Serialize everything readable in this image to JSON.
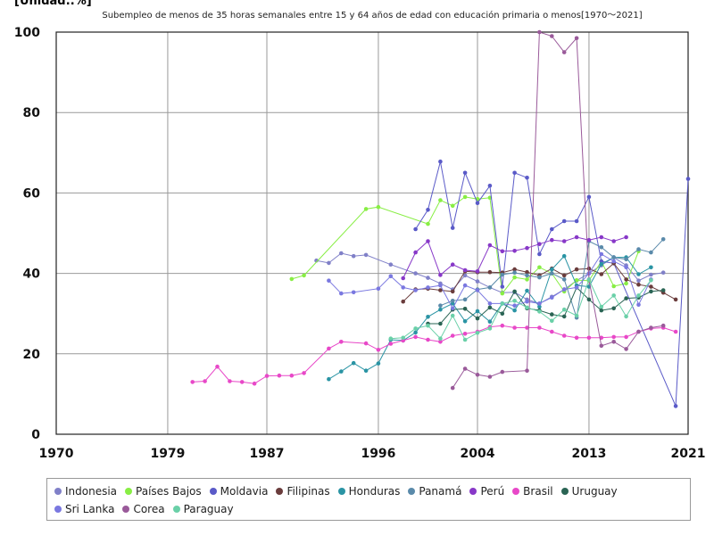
{
  "unit_label": "[Unidad:.%]",
  "chart_data": {
    "type": "line",
    "title": "Subempleo de menos de 35 horas semanales entre 15 y 64 años de edad con educación primaria o menos[1970～2021]",
    "xlim": [
      1970,
      2021
    ],
    "ylim": [
      0,
      100
    ],
    "x_ticks": [
      1970,
      1979,
      1987,
      1996,
      2004,
      2013,
      2021
    ],
    "y_ticks": [
      0,
      20,
      40,
      60,
      80,
      100
    ],
    "grid": true,
    "legend_position": "bottom",
    "series": [
      {
        "name": "Indonesia",
        "color": "#8080c8",
        "points": [
          [
            1991,
            43.2
          ],
          [
            1992,
            42.6
          ],
          [
            1993,
            45
          ],
          [
            1994,
            44.3
          ],
          [
            1995,
            44.6
          ],
          [
            1997,
            42.2
          ],
          [
            1999,
            40
          ],
          [
            2000,
            38.9
          ],
          [
            2001,
            37.5
          ],
          [
            2002,
            36
          ],
          [
            2003,
            39.5
          ],
          [
            2004,
            38
          ],
          [
            2005,
            36.5
          ],
          [
            2006,
            35.2
          ],
          [
            2007,
            35.3
          ],
          [
            2008,
            33.5
          ],
          [
            2009,
            32.5
          ],
          [
            2010,
            34.2
          ],
          [
            2011,
            36
          ],
          [
            2012,
            38.2
          ],
          [
            2013,
            40
          ],
          [
            2014,
            42
          ],
          [
            2015,
            44
          ],
          [
            2016,
            42
          ],
          [
            2017,
            38.2
          ],
          [
            2018,
            39.7
          ],
          [
            2019,
            40.2
          ]
        ]
      },
      {
        "name": "Países Bajos",
        "color": "#88ee44",
        "points": [
          [
            1989,
            38.6
          ],
          [
            1990,
            39.5
          ],
          [
            1995,
            56
          ],
          [
            1996,
            56.5
          ],
          [
            2000,
            52.3
          ],
          [
            2001,
            58.2
          ],
          [
            2002,
            56.8
          ],
          [
            2003,
            59
          ],
          [
            2004,
            58.5
          ],
          [
            2005,
            58.8
          ],
          [
            2006,
            35
          ],
          [
            2007,
            39
          ],
          [
            2008,
            38.5
          ],
          [
            2009,
            41.5
          ],
          [
            2010,
            40
          ],
          [
            2011,
            35.5
          ],
          [
            2012,
            38.3
          ],
          [
            2013,
            38.2
          ],
          [
            2014,
            43
          ],
          [
            2015,
            36.8
          ],
          [
            2016,
            37.5
          ],
          [
            2017,
            45.5
          ]
        ]
      },
      {
        "name": "Moldavia",
        "color": "#5a5ac8",
        "points": [
          [
            1999,
            51
          ],
          [
            2000,
            55.8
          ],
          [
            2001,
            67.8
          ],
          [
            2002,
            51.3
          ],
          [
            2003,
            65
          ],
          [
            2004,
            57.5
          ],
          [
            2005,
            61.8
          ],
          [
            2006,
            36.7
          ],
          [
            2007,
            65
          ],
          [
            2008,
            63.8
          ],
          [
            2009,
            44.8
          ],
          [
            2010,
            51
          ],
          [
            2011,
            53
          ],
          [
            2012,
            53
          ],
          [
            2013,
            59
          ],
          [
            2014,
            43
          ],
          [
            2015,
            42.5
          ],
          [
            2020,
            7
          ],
          [
            2021,
            63.5
          ]
        ]
      },
      {
        "name": "Filipinas",
        "color": "#6a3c3c",
        "points": [
          [
            1998,
            33
          ],
          [
            1999,
            36
          ],
          [
            2000,
            36.2
          ],
          [
            2001,
            35.8
          ],
          [
            2002,
            35.5
          ],
          [
            2003,
            40.5
          ],
          [
            2004,
            40.3
          ],
          [
            2005,
            40.3
          ],
          [
            2006,
            40.2
          ],
          [
            2007,
            41
          ],
          [
            2008,
            40.3
          ],
          [
            2009,
            39.5
          ],
          [
            2010,
            41.2
          ],
          [
            2011,
            39.5
          ],
          [
            2012,
            41
          ],
          [
            2013,
            41.2
          ],
          [
            2014,
            39.8
          ],
          [
            2015,
            42.5
          ],
          [
            2016,
            38.5
          ],
          [
            2017,
            37.2
          ],
          [
            2018,
            36.7
          ],
          [
            2019,
            35.2
          ],
          [
            2020,
            33.5
          ]
        ]
      },
      {
        "name": "Honduras",
        "color": "#2a94a4",
        "points": [
          [
            1992,
            13.7
          ],
          [
            1993,
            15.6
          ],
          [
            1994,
            17.7
          ],
          [
            1995,
            15.8
          ],
          [
            1996,
            17.6
          ],
          [
            1997,
            23.5
          ],
          [
            1998,
            23.3
          ],
          [
            1999,
            25.3
          ],
          [
            2000,
            29.2
          ],
          [
            2001,
            31
          ],
          [
            2002,
            32.5
          ],
          [
            2003,
            28.1
          ],
          [
            2004,
            30.6
          ],
          [
            2005,
            28
          ],
          [
            2006,
            32.5
          ],
          [
            2007,
            30.8
          ],
          [
            2008,
            35.7
          ],
          [
            2009,
            31.7
          ],
          [
            2010,
            41
          ],
          [
            2011,
            44.3
          ],
          [
            2012,
            37
          ],
          [
            2013,
            36.7
          ],
          [
            2014,
            42.3
          ],
          [
            2015,
            44
          ],
          [
            2016,
            44
          ],
          [
            2017,
            39.8
          ],
          [
            2018,
            41.5
          ]
        ]
      },
      {
        "name": "Panamá",
        "color": "#5a8aaa",
        "points": [
          [
            2001,
            32
          ],
          [
            2002,
            33.2
          ],
          [
            2003,
            33.5
          ],
          [
            2004,
            36
          ],
          [
            2005,
            36.5
          ],
          [
            2006,
            39.7
          ],
          [
            2007,
            40.2
          ],
          [
            2008,
            39.5
          ],
          [
            2009,
            39
          ],
          [
            2010,
            40
          ],
          [
            2011,
            38.5
          ],
          [
            2012,
            29
          ],
          [
            2013,
            48
          ],
          [
            2014,
            46.5
          ],
          [
            2015,
            44
          ],
          [
            2016,
            43.5
          ],
          [
            2017,
            46
          ],
          [
            2018,
            45.2
          ],
          [
            2019,
            48.5
          ]
        ]
      },
      {
        "name": "Perú",
        "color": "#8838c8",
        "points": [
          [
            1998,
            38.8
          ],
          [
            1999,
            45.2
          ],
          [
            2000,
            48
          ],
          [
            2001,
            39.6
          ],
          [
            2002,
            42.2
          ],
          [
            2003,
            40.8
          ],
          [
            2004,
            40.5
          ],
          [
            2005,
            47
          ],
          [
            2006,
            45.5
          ],
          [
            2007,
            45.6
          ],
          [
            2008,
            46.3
          ],
          [
            2009,
            47.3
          ],
          [
            2010,
            48.3
          ],
          [
            2011,
            48
          ],
          [
            2012,
            49
          ],
          [
            2013,
            48.3
          ],
          [
            2014,
            49
          ],
          [
            2015,
            48
          ],
          [
            2016,
            49
          ]
        ]
      },
      {
        "name": "Brasil",
        "color": "#e848c8",
        "points": [
          [
            1981,
            13
          ],
          [
            1982,
            13.2
          ],
          [
            1983,
            16.8
          ],
          [
            1984,
            13.2
          ],
          [
            1985,
            13
          ],
          [
            1986,
            12.6
          ],
          [
            1987,
            14.5
          ],
          [
            1988,
            14.6
          ],
          [
            1989,
            14.6
          ],
          [
            1990,
            15.2
          ],
          [
            1992,
            21.3
          ],
          [
            1993,
            23
          ],
          [
            1995,
            22.6
          ],
          [
            1996,
            21
          ],
          [
            1997,
            22.5
          ],
          [
            1998,
            23.3
          ],
          [
            1999,
            24.2
          ],
          [
            2000,
            23.5
          ],
          [
            2001,
            23
          ],
          [
            2002,
            24.5
          ],
          [
            2003,
            25
          ],
          [
            2004,
            25.5
          ],
          [
            2005,
            26.7
          ],
          [
            2006,
            27
          ],
          [
            2007,
            26.5
          ],
          [
            2008,
            26.5
          ],
          [
            2009,
            26.5
          ],
          [
            2010,
            25.5
          ],
          [
            2011,
            24.5
          ],
          [
            2012,
            24
          ],
          [
            2013,
            24
          ],
          [
            2014,
            24
          ],
          [
            2015,
            24.2
          ],
          [
            2016,
            24.2
          ],
          [
            2017,
            25.5
          ],
          [
            2018,
            26.3
          ],
          [
            2019,
            26.5
          ],
          [
            2020,
            25.5
          ]
        ]
      },
      {
        "name": "Uruguay",
        "color": "#2a6454",
        "points": [
          [
            2000,
            27.5
          ],
          [
            2001,
            27.5
          ],
          [
            2002,
            31
          ],
          [
            2003,
            31.2
          ],
          [
            2004,
            28.8
          ],
          [
            2005,
            31.5
          ],
          [
            2006,
            30
          ],
          [
            2007,
            35.5
          ],
          [
            2008,
            31.3
          ],
          [
            2009,
            30.8
          ],
          [
            2010,
            29.8
          ],
          [
            2011,
            29.3
          ],
          [
            2012,
            36.5
          ],
          [
            2013,
            33.5
          ],
          [
            2014,
            30.8
          ],
          [
            2015,
            31.3
          ],
          [
            2016,
            33.8
          ],
          [
            2017,
            34
          ],
          [
            2018,
            35.5
          ],
          [
            2019,
            35.8
          ]
        ]
      },
      {
        "name": "Sri Lanka",
        "color": "#7a78e0",
        "points": [
          [
            1992,
            38.2
          ],
          [
            1993,
            35
          ],
          [
            1994,
            35.3
          ],
          [
            1996,
            36.2
          ],
          [
            1997,
            39.3
          ],
          [
            1998,
            36.5
          ],
          [
            1999,
            35.8
          ],
          [
            2000,
            36.5
          ],
          [
            2001,
            37
          ],
          [
            2002,
            31.3
          ],
          [
            2003,
            37
          ],
          [
            2004,
            35.8
          ],
          [
            2005,
            32.5
          ],
          [
            2006,
            32.5
          ],
          [
            2007,
            32
          ],
          [
            2008,
            33
          ],
          [
            2009,
            32.5
          ],
          [
            2010,
            34
          ],
          [
            2011,
            36
          ],
          [
            2012,
            36.5
          ],
          [
            2013,
            40
          ],
          [
            2014,
            44.8
          ],
          [
            2015,
            43
          ],
          [
            2016,
            41.5
          ],
          [
            2017,
            32.2
          ],
          [
            2018,
            38.5
          ]
        ]
      },
      {
        "name": "Corea",
        "color": "#9a5a9a",
        "points": [
          [
            2002,
            11.5
          ],
          [
            2003,
            16.3
          ],
          [
            2004,
            14.8
          ],
          [
            2005,
            14.3
          ],
          [
            2006,
            15.5
          ],
          [
            2008,
            15.8
          ],
          [
            2009,
            100
          ],
          [
            2010,
            99
          ],
          [
            2011,
            95
          ],
          [
            2012,
            98.5
          ],
          [
            2013,
            38.5
          ],
          [
            2014,
            22
          ],
          [
            2015,
            23
          ],
          [
            2016,
            21.2
          ],
          [
            2017,
            25.5
          ],
          [
            2018,
            26.5
          ],
          [
            2019,
            27
          ]
        ]
      },
      {
        "name": "Paraguay",
        "color": "#6ad0a8",
        "points": [
          [
            1997,
            23.8
          ],
          [
            1998,
            24
          ],
          [
            1999,
            26.3
          ],
          [
            2000,
            27
          ],
          [
            2001,
            23.8
          ],
          [
            2002,
            29.5
          ],
          [
            2003,
            23.5
          ],
          [
            2004,
            25.2
          ],
          [
            2005,
            26.3
          ],
          [
            2006,
            32.5
          ],
          [
            2007,
            33.2
          ],
          [
            2008,
            31.5
          ],
          [
            2009,
            30.5
          ],
          [
            2010,
            28.2
          ],
          [
            2011,
            31
          ],
          [
            2012,
            29.5
          ],
          [
            2013,
            38.5
          ],
          [
            2014,
            31.7
          ],
          [
            2015,
            34.5
          ],
          [
            2016,
            29.3
          ],
          [
            2017,
            34.5
          ],
          [
            2018,
            38.3
          ]
        ]
      }
    ]
  }
}
